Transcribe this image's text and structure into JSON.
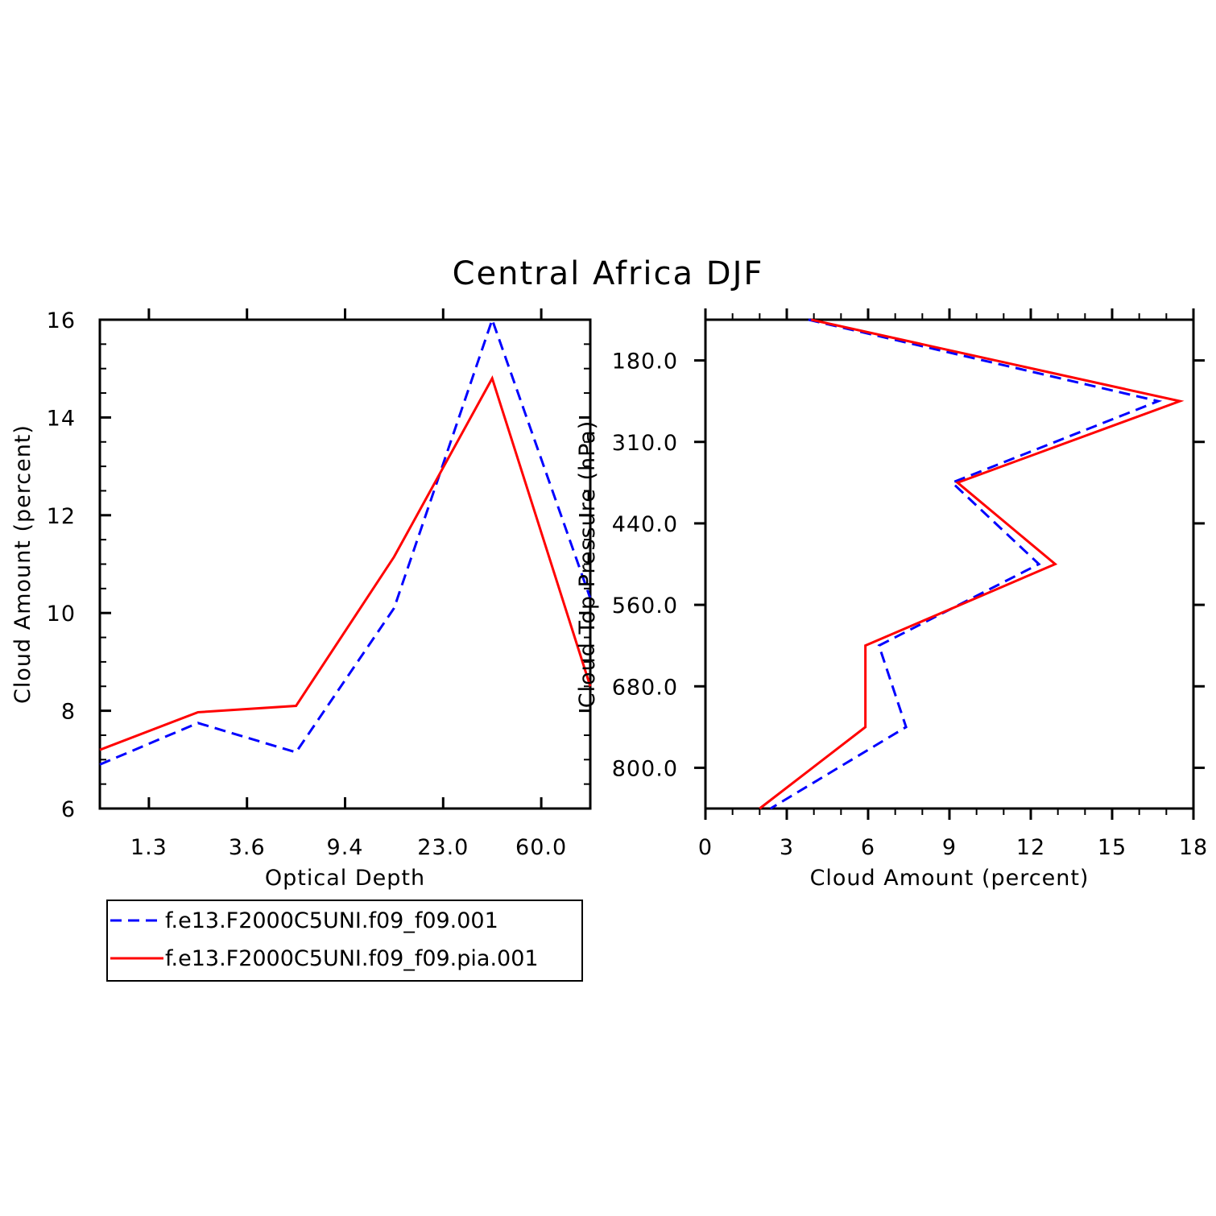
{
  "title": "Central Africa DJF",
  "colors": {
    "series_1": "#0000ff",
    "series_2": "#ff0000",
    "axis": "#000000"
  },
  "legend": {
    "entries": [
      {
        "label": "f.e13.F2000C5UNI.f09_f09.001",
        "color": "#0000ff",
        "dash": "dashed"
      },
      {
        "label": "f.e13.F2000C5UNI.f09_f09.pia.001",
        "color": "#ff0000",
        "dash": "solid"
      }
    ]
  },
  "chart_data": [
    {
      "type": "line",
      "xlabel": "Optical Depth",
      "ylabel": "Cloud Amount (percent)",
      "x_tick_labels": [
        "1.3",
        "3.6",
        "9.4",
        "23.0",
        "60.0"
      ],
      "y_ticks": [
        6,
        8,
        10,
        12,
        14,
        16
      ],
      "ylim": [
        6,
        16
      ],
      "x_bins": 5,
      "series": [
        {
          "name": "f.e13.F2000C5UNI.f09_f09.001",
          "color": "#0000ff",
          "dash": "dashed",
          "x": [
            0,
            1,
            2,
            3,
            4,
            5
          ],
          "y": [
            6.9,
            7.75,
            7.15,
            10.1,
            16.0,
            10.3
          ]
        },
        {
          "name": "f.e13.F2000C5UNI.f09_f09.pia.001",
          "color": "#ff0000",
          "dash": "solid",
          "x": [
            0,
            1,
            2,
            3,
            4,
            5
          ],
          "y": [
            7.2,
            7.97,
            8.1,
            11.15,
            14.8,
            8.5
          ]
        }
      ]
    },
    {
      "type": "line",
      "xlabel": "Cloud Amount (percent)",
      "ylabel": "Cloud Top Pressure (hPa)",
      "x_ticks": [
        0,
        3,
        6,
        9,
        12,
        15,
        18
      ],
      "xlim": [
        0,
        18
      ],
      "y_tick_labels": [
        "180.0",
        "310.0",
        "440.0",
        "560.0",
        "680.0",
        "800.0"
      ],
      "y_bins": 6,
      "series": [
        {
          "name": "f.e13.F2000C5UNI.f09_f09.001",
          "color": "#0000ff",
          "dash": "dashed",
          "x": [
            3.8,
            16.7,
            9.1,
            12.3,
            6.4,
            7.4,
            2.4
          ],
          "y": [
            0,
            1,
            2,
            3,
            4,
            5,
            6
          ]
        },
        {
          "name": "f.e13.F2000C5UNI.f09_f09.pia.001",
          "color": "#ff0000",
          "dash": "solid",
          "x": [
            3.9,
            17.5,
            9.3,
            12.9,
            5.9,
            5.9,
            2.0
          ],
          "y": [
            0,
            1,
            2,
            3,
            4,
            5,
            6
          ]
        }
      ]
    }
  ]
}
